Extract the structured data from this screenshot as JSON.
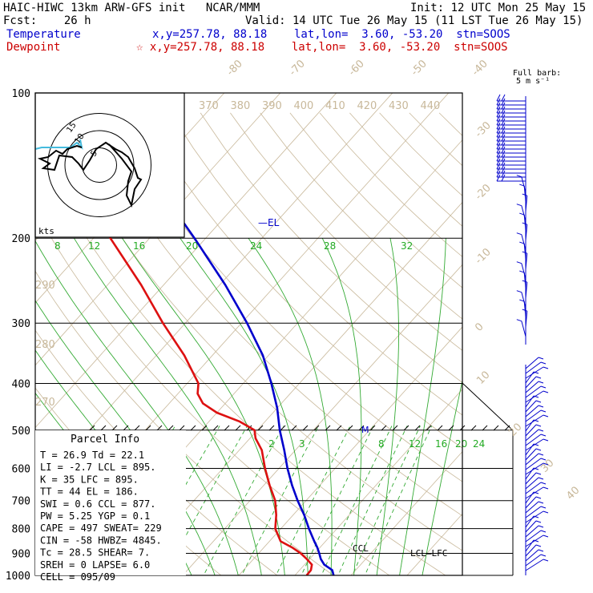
{
  "header": {
    "model": "HAIC-HIWC 13km ARW-GFS init",
    "org": "NCAR/MMM",
    "init": "Init: 12 UTC Mon 25 May 15",
    "fcst_label": "Fcst:",
    "fcst_value": "26 h",
    "valid": "Valid: 14 UTC Tue 26 May 15 (11 LST Tue 26 May 15)",
    "temp_label": "Temperature",
    "temp_loc": "x,y=257.78, 88.18    lat,lon=  3.60, -53.20  stn=SOOS",
    "dew_label": "Dewpoint",
    "dew_loc": "☆ x,y=257.78, 88.18    lat,lon=  3.60, -53.20  stn=SOOS"
  },
  "barb_legend": {
    "line1": "Full barb:",
    "line2": "5 m s⁻¹"
  },
  "hodograph": {
    "units": "kts",
    "ring_labels": [
      "5",
      "10",
      "15"
    ]
  },
  "annotations": {
    "el": "EL",
    "m": "M",
    "ccl": "CCL",
    "lcl_lfc": "LCL—LFC"
  },
  "parcel_info": {
    "title": "Parcel Info",
    "rows": [
      "T   =   26.9  Td =  22.1",
      "LI  =   -2.7  LCL =  895.",
      "K   =     35  LFC =  895.",
      "TT  =     44  EL  =  186.",
      "SWI =    0.6  CCL =  877.",
      "PW  =   5.25  YGP =   0.1",
      "CAPE =   497  SWEAT=  229",
      "CIN  =   -58  HWBZ= 4845.",
      "Tc  =   28.5  SHEAR=   7.",
      "SREH =     0  LAPSE=  6.0",
      "CELL = 095/09"
    ]
  },
  "chart_data": {
    "type": "skew-T log-p sounding",
    "pressure_levels_hPa": [
      100,
      200,
      300,
      400,
      500,
      600,
      700,
      800,
      900,
      1000
    ],
    "isotherm_labels_C": [
      -80,
      -70,
      -60,
      -50,
      -40,
      -30,
      -20,
      -10,
      0,
      10,
      20,
      30,
      40
    ],
    "theta_labels_K_upper": [
      370,
      380,
      390,
      400,
      410,
      420,
      430,
      440
    ],
    "theta_labels_K_left": [
      290,
      280,
      270
    ],
    "mixing_ratio_labels_upper": [
      8,
      12,
      16,
      20,
      24,
      28,
      32
    ],
    "mixing_ratio_labels_lower": [
      2,
      3,
      8,
      12,
      16,
      20,
      24
    ],
    "series": [
      {
        "name": "Temperature",
        "color": "#0000cc",
        "points": [
          [
            1000,
            26.9
          ],
          [
            975,
            25.8
          ],
          [
            950,
            23.5
          ],
          [
            925,
            22.0
          ],
          [
            900,
            20.8
          ],
          [
            875,
            19.5
          ],
          [
            850,
            18.0
          ],
          [
            800,
            15.0
          ],
          [
            750,
            12.0
          ],
          [
            700,
            8.5
          ],
          [
            650,
            5.0
          ],
          [
            600,
            1.5
          ],
          [
            550,
            -2.0
          ],
          [
            500,
            -6.0
          ],
          [
            450,
            -10.0
          ],
          [
            400,
            -15.0
          ],
          [
            350,
            -21.0
          ],
          [
            300,
            -29.0
          ],
          [
            250,
            -39.0
          ],
          [
            200,
            -52.0
          ],
          [
            175,
            -60.0
          ],
          [
            150,
            -67.0
          ],
          [
            125,
            -74.0
          ],
          [
            100,
            -79.0
          ]
        ]
      },
      {
        "name": "Dewpoint",
        "color": "#dd1111",
        "points": [
          [
            1000,
            22.1
          ],
          [
            975,
            22.0
          ],
          [
            950,
            21.3
          ],
          [
            925,
            19.5
          ],
          [
            900,
            17.5
          ],
          [
            875,
            15.0
          ],
          [
            850,
            12.0
          ],
          [
            800,
            9.0
          ],
          [
            750,
            7.0
          ],
          [
            700,
            4.5
          ],
          [
            650,
            1.0
          ],
          [
            600,
            -2.5
          ],
          [
            550,
            -6.0
          ],
          [
            520,
            -9.0
          ],
          [
            500,
            -10.5
          ],
          [
            480,
            -14.5
          ],
          [
            460,
            -20.0
          ],
          [
            440,
            -24.0
          ],
          [
            420,
            -26.5
          ],
          [
            400,
            -28.0
          ],
          [
            350,
            -35.0
          ],
          [
            300,
            -44.0
          ],
          [
            250,
            -54.0
          ],
          [
            200,
            -67.0
          ],
          [
            175,
            -73.0
          ],
          [
            150,
            -80.0
          ],
          [
            135,
            -83.0
          ],
          [
            125,
            -84.0
          ],
          [
            110,
            -85.0
          ],
          [
            100,
            -86.0
          ]
        ]
      }
    ],
    "hodograph_rings_kts": [
      5,
      10,
      15
    ]
  },
  "colors": {
    "temperature": "#0000cc",
    "dewpoint": "#dd1111",
    "isotherm": "#c8b89a",
    "mixing_ratio": "#22aa22",
    "hodo_cyan": "#44bbdd"
  }
}
